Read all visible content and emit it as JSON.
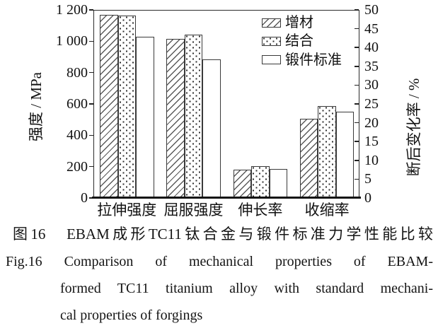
{
  "figure": {
    "caption_zh": "图16　EBAM成形TC11钛合金与锻件标准力学性能比较",
    "caption_en_lines": [
      "Fig.16 Comparison of mechanical properties of EBAM-",
      "formed TC11 titanium alloy with standard mechani-",
      "cal properties of forgings"
    ]
  },
  "chart_data": {
    "type": "bar",
    "title": "",
    "categories": [
      "拉伸强度",
      "屈服强度",
      "伸长率",
      "收缩率"
    ],
    "category_axis": [
      "left",
      "left",
      "right",
      "right"
    ],
    "series": [
      {
        "name": "增材",
        "fill": "diagonal-hatch",
        "values": [
          1170,
          1015,
          7.5,
          21
        ]
      },
      {
        "name": "结合",
        "fill": "dots",
        "values": [
          1165,
          1040,
          8.5,
          24.5
        ]
      },
      {
        "name": "锻件标准",
        "fill": "plain",
        "values": [
          1030,
          885,
          7.8,
          23
        ]
      }
    ],
    "left_axis": {
      "label": "强度 / MPa",
      "min": 0,
      "max": 1200,
      "step": 200,
      "tick_labels": [
        "0",
        "200",
        "400",
        "600",
        "800",
        "1 000",
        "1 200"
      ]
    },
    "right_axis": {
      "label": "断后变化率 / %",
      "min": 0,
      "max": 50,
      "step": 5,
      "tick_labels": [
        "0",
        "5",
        "10",
        "15",
        "20",
        "25",
        "30",
        "35",
        "40",
        "45",
        "50"
      ]
    },
    "legend": {
      "position": "top-right-inside",
      "entries": [
        "增材",
        "结合",
        "锻件标准"
      ]
    },
    "grid": false,
    "colors": {
      "axis": "#222222",
      "bar_border": "#3a3a3a",
      "hatch_line": "#5a5a5a",
      "dot": "#2c2c2c",
      "text": "#111111"
    }
  }
}
